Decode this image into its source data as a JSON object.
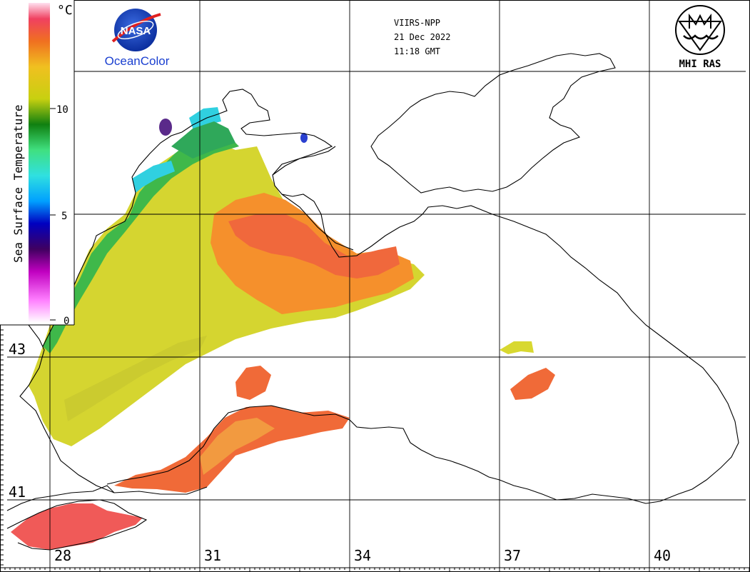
{
  "header": {
    "satellite": "VIIRS-NPP",
    "date": "21 Dec 2022",
    "time": "11:18 GMT"
  },
  "logos": {
    "nasa_text": "NASA",
    "oceancolor_text": "OceanColor",
    "mhi_text": "MHI RAS"
  },
  "legend": {
    "title": "Sea Surface Temperature",
    "unit": "°C",
    "ticks": [
      "0",
      "5",
      "10"
    ]
  },
  "grid": {
    "lon_labels": [
      "28",
      "31",
      "34",
      "37",
      "40"
    ],
    "lat_labels": [
      "43",
      "41"
    ]
  },
  "colors": {
    "warm": "#f06040",
    "orange": "#f58a30",
    "yellow": "#d8d830",
    "green": "#3fbf3f",
    "cyan": "#30d0e0",
    "coast": "#000000"
  }
}
